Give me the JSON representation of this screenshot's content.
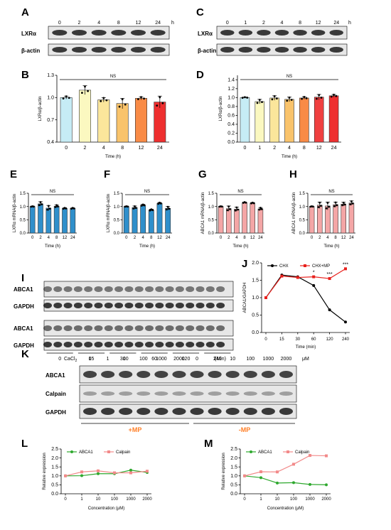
{
  "blots": {
    "A": {
      "label": "A",
      "lanes": [
        "0",
        "2",
        "4",
        "8",
        "12",
        "24"
      ],
      "unit": "h",
      "rows": [
        "LXRα",
        "β-actin"
      ]
    },
    "C": {
      "label": "C",
      "lanes": [
        "0",
        "1",
        "2",
        "4",
        "8",
        "12",
        "24"
      ],
      "unit": "h",
      "rows": [
        "LXRα",
        "β-actin"
      ]
    },
    "I": {
      "label": "I",
      "rows": [
        "ABCA1",
        "GAPDH",
        "ABCA1",
        "GAPDH"
      ],
      "groups": [
        "0",
        "15",
        "30",
        "60",
        "120",
        "240"
      ],
      "unit": "(Min)"
    },
    "K": {
      "label": "K",
      "treatment": "CaCl",
      "treatment_sub": "2",
      "lanes": [
        "0",
        "1",
        "10",
        "100",
        "1000",
        "2000",
        "0",
        "1",
        "10",
        "100",
        "1000",
        "2000"
      ],
      "unit": "μM",
      "rows": [
        "ABCA1",
        "Calpain",
        "GAPDH"
      ],
      "groups": [
        "+MP",
        "-MP"
      ]
    }
  },
  "chart_data": [
    {
      "panel": "B",
      "type": "bar",
      "ylabel": "LXRα/β-actin",
      "xlabel": "Time (h)",
      "categories": [
        "0",
        "2",
        "4",
        "8",
        "12",
        "24"
      ],
      "values": [
        1.0,
        1.1,
        0.97,
        0.92,
        0.99,
        0.94
      ],
      "errors": [
        0.02,
        0.06,
        0.03,
        0.07,
        0.02,
        0.08
      ],
      "ylim": [
        0.4,
        1.3
      ],
      "yticks": [
        "0.4",
        "0.7",
        "1.0",
        "1.3"
      ],
      "annotation": "NS",
      "colors": [
        "#c6ecf5",
        "#fbf8c0",
        "#fbe69b",
        "#f9c36b",
        "#f98b46",
        "#ee2f2f"
      ]
    },
    {
      "panel": "D",
      "type": "bar",
      "ylabel": "LXRα/β-actin",
      "xlabel": "Time (h)",
      "categories": [
        "0",
        "1",
        "2",
        "4",
        "8",
        "12",
        "24"
      ],
      "values": [
        1.0,
        0.91,
        0.99,
        0.96,
        0.99,
        1.01,
        1.04
      ],
      "errors": [
        0.01,
        0.05,
        0.05,
        0.05,
        0.03,
        0.06,
        0.03
      ],
      "ylim": [
        0.0,
        1.5
      ],
      "yticks": [
        "0.0",
        "0.2",
        "0.4",
        "0.6",
        "0.8",
        "1.0",
        "1.2",
        "1.4"
      ],
      "annotation": "NS",
      "colors": [
        "#c6ecf5",
        "#fbf8c0",
        "#fbe69b",
        "#f9c36b",
        "#f98b46",
        "#f04040",
        "#ee2f2f"
      ]
    },
    {
      "panel": "E",
      "type": "bar",
      "ylabel": "LXRα mRNA/β-actin",
      "xlabel": "Time (h)",
      "categories": [
        "0",
        "2",
        "4",
        "8",
        "12",
        "24"
      ],
      "values": [
        1.0,
        1.1,
        0.94,
        1.01,
        0.93,
        0.93
      ],
      "errors": [
        0.01,
        0.08,
        0.1,
        0.05,
        0.02,
        0.02
      ],
      "ylim": [
        0.0,
        1.5
      ],
      "yticks": [
        "0.0",
        "0.5",
        "1.0",
        "1.5"
      ],
      "annotation": "NS",
      "colors": [
        "#2f8fcb"
      ]
    },
    {
      "panel": "F",
      "type": "bar",
      "ylabel": "LXRα mRNA/β-actin",
      "xlabel": "Time (h)",
      "categories": [
        "0",
        "2",
        "4",
        "8",
        "12",
        "24"
      ],
      "values": [
        1.0,
        0.96,
        1.05,
        0.87,
        1.12,
        0.93
      ],
      "errors": [
        0.01,
        0.06,
        0.03,
        0.03,
        0.03,
        0.07
      ],
      "ylim": [
        0.0,
        1.5
      ],
      "yticks": [
        "0.0",
        "0.5",
        "1.0",
        "1.5"
      ],
      "annotation": "NS",
      "colors": [
        "#2f8fcb"
      ]
    },
    {
      "panel": "G",
      "type": "bar",
      "ylabel": "ABCA1 mRNA/β-actin",
      "xlabel": "Time (h)",
      "categories": [
        "0",
        "2",
        "4",
        "8",
        "12",
        "24"
      ],
      "values": [
        1.0,
        0.92,
        0.9,
        1.15,
        1.13,
        0.91
      ],
      "errors": [
        0.01,
        0.1,
        0.08,
        0.02,
        0.02,
        0.05
      ],
      "ylim": [
        0.0,
        1.5
      ],
      "yticks": [
        "0.0",
        "0.5",
        "1.0",
        "1.5"
      ],
      "annotation": "NS",
      "colors": [
        "#f4a6a6"
      ]
    },
    {
      "panel": "H",
      "type": "bar",
      "ylabel": "ABCA1 mRNA/β-actin",
      "xlabel": "Time (h)",
      "categories": [
        "0",
        "2",
        "4",
        "8",
        "12",
        "24"
      ],
      "values": [
        1.0,
        1.05,
        1.02,
        1.07,
        1.09,
        1.13
      ],
      "errors": [
        0.01,
        0.12,
        0.15,
        0.1,
        0.07,
        0.08
      ],
      "ylim": [
        0.0,
        1.5
      ],
      "yticks": [
        "0.0",
        "0.5",
        "1.0",
        "1.5"
      ],
      "annotation": "NS",
      "colors": [
        "#f4a6a6"
      ]
    },
    {
      "panel": "J",
      "type": "line",
      "ylabel": "ABCA1/GAPDH",
      "xlabel": "Time (min)",
      "categories": [
        "0",
        "15",
        "30",
        "60",
        "120",
        "240"
      ],
      "ylim": [
        0.0,
        2.0
      ],
      "yticks": [
        "0.0",
        "0.5",
        "1.0",
        "1.5",
        "2.0"
      ],
      "series": [
        {
          "name": "CHX",
          "values": [
            1.0,
            1.65,
            1.6,
            1.35,
            0.65,
            0.3
          ],
          "color": "#000000"
        },
        {
          "name": "CHX+MP",
          "values": [
            1.0,
            1.62,
            1.58,
            1.6,
            1.55,
            1.83
          ],
          "color": "#e8201c"
        }
      ],
      "annotations": [
        {
          "index": 3,
          "text": "*"
        },
        {
          "index": 4,
          "text": "***"
        },
        {
          "index": 5,
          "text": "***"
        }
      ]
    },
    {
      "panel": "L",
      "type": "line",
      "ylabel": "Relative expression",
      "xlabel": "Concentration (μM)",
      "categories": [
        "0",
        "1",
        "10",
        "100",
        "1000",
        "2000"
      ],
      "ylim": [
        0.0,
        2.5
      ],
      "yticks": [
        "0.0",
        "0.5",
        "1.0",
        "1.5",
        "2.0",
        "2.5"
      ],
      "series": [
        {
          "name": "ABCA1",
          "values": [
            1.0,
            1.01,
            1.12,
            1.12,
            1.32,
            1.19
          ],
          "color": "#2ea82e"
        },
        {
          "name": "Calpain",
          "values": [
            1.0,
            1.22,
            1.28,
            1.17,
            1.17,
            1.26
          ],
          "color": "#f28a8a"
        }
      ]
    },
    {
      "panel": "M",
      "type": "line",
      "ylabel": "Relative expression",
      "xlabel": "Concentration (μM)",
      "categories": [
        "0",
        "1",
        "10",
        "100",
        "1000",
        "2000"
      ],
      "ylim": [
        0.0,
        2.5
      ],
      "yticks": [
        "0.0",
        "0.5",
        "1.0",
        "1.5",
        "2.0",
        "2.5"
      ],
      "series": [
        {
          "name": "ABCA1",
          "values": [
            1.0,
            0.9,
            0.6,
            0.62,
            0.52,
            0.5
          ],
          "color": "#2ea82e"
        },
        {
          "name": "Calpain",
          "values": [
            1.0,
            1.23,
            1.22,
            1.65,
            2.14,
            2.12
          ],
          "color": "#f28a8a"
        }
      ]
    }
  ]
}
